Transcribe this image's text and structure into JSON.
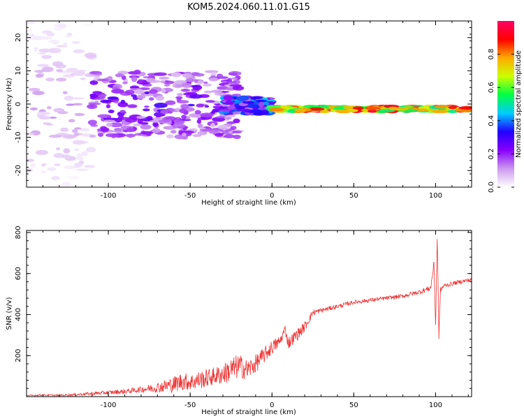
{
  "title": "KOM5.2024.060.11.01.G15",
  "chart_data": [
    {
      "type": "heatmap",
      "xlabel": "Height of straight line (km)",
      "ylabel": "Frequency (Hz)",
      "xlim": [
        -150,
        122
      ],
      "ylim": [
        -25,
        25
      ],
      "xticks": [
        -100,
        -50,
        0,
        50,
        100
      ],
      "yticks": [
        -20,
        -10,
        0,
        10,
        20
      ],
      "colorbar": {
        "label": "Normalized spectral amplitude",
        "range": [
          0,
          1
        ],
        "ticks": [
          "0.0",
          "0.2",
          "0.4",
          "0.6",
          "0.8"
        ],
        "colormap": [
          "#ffffff",
          "#cc99ee",
          "#8800ff",
          "#2200ff",
          "#00ccff",
          "#00ff44",
          "#ccff00",
          "#ffaa00",
          "#ff0000",
          "#ff0066"
        ]
      },
      "features": [
        {
          "x_range": [
            -150,
            -110
          ],
          "freq_range": [
            -25,
            25
          ],
          "amplitude": 0.1
        },
        {
          "x_range": [
            -110,
            -20
          ],
          "freq_range": [
            -10,
            10
          ],
          "amplitude": 0.22
        },
        {
          "x_range": [
            -30,
            0
          ],
          "freq_range": [
            -3,
            2
          ],
          "amplitude": 0.35
        },
        {
          "x_range": [
            0,
            120
          ],
          "freq_range": [
            -2.5,
            -0.5
          ],
          "amplitude": 0.9
        }
      ]
    },
    {
      "type": "line",
      "xlabel": "Height of straight line (km)",
      "ylabel": "SNR (v/v)",
      "xlim": [
        -150,
        122
      ],
      "ylim": [
        0,
        810
      ],
      "xticks": [
        -100,
        -50,
        0,
        50,
        100
      ],
      "yticks": [
        200,
        400,
        600,
        800
      ],
      "color": "#ee3333",
      "series": [
        {
          "x": [
            -150,
            -140,
            -130,
            -120,
            -110,
            -100,
            -90,
            -80,
            -70,
            -60,
            -55,
            -50,
            -45,
            -40,
            -35,
            -30,
            -25,
            -20,
            -15,
            -10,
            -5,
            0,
            5,
            8,
            10,
            15,
            20,
            25,
            30,
            40,
            50,
            60,
            70,
            80,
            90,
            97,
            99,
            100,
            101,
            102,
            103,
            105,
            110,
            115,
            122
          ],
          "y": [
            5,
            8,
            6,
            10,
            15,
            20,
            25,
            35,
            45,
            60,
            75,
            70,
            80,
            90,
            100,
            110,
            130,
            150,
            130,
            160,
            200,
            240,
            270,
            330,
            260,
            300,
            340,
            410,
            420,
            440,
            460,
            470,
            480,
            490,
            510,
            530,
            650,
            350,
            780,
            300,
            520,
            540,
            550,
            560,
            570
          ],
          "noise": [
            3,
            4,
            4,
            6,
            8,
            10,
            12,
            15,
            25,
            40,
            45,
            40,
            45,
            45,
            45,
            50,
            60,
            60,
            50,
            45,
            40,
            35,
            30,
            20,
            30,
            30,
            25,
            15,
            12,
            10,
            10,
            10,
            10,
            10,
            12,
            14,
            20,
            20,
            20,
            20,
            14,
            10,
            10,
            10,
            10
          ]
        }
      ]
    }
  ]
}
